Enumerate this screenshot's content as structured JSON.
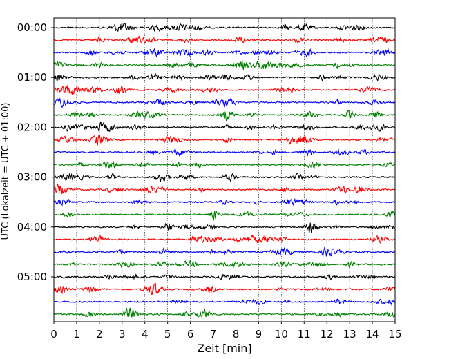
{
  "chart_data": {
    "type": "line",
    "subtype": "helicorder",
    "xlabel": "Zeit  [min]",
    "ylabel": "UTC (Lokalzeit = UTC + 01:00)",
    "xlim": [
      0,
      15
    ],
    "x_ticks": [
      "0",
      "1",
      "2",
      "3",
      "4",
      "5",
      "6",
      "7",
      "8",
      "9",
      "10",
      "11",
      "12",
      "13",
      "14",
      "15"
    ],
    "y_ticks": [
      "00:00",
      "01:00",
      "02:00",
      "03:00",
      "04:00",
      "05:00"
    ],
    "traces_per_hour": 4,
    "trace_count": 24,
    "trace_colors": [
      "#000000",
      "#ff0000",
      "#0000ff",
      "#008000"
    ],
    "grid": "vertical dotted lines at each minute",
    "signal": "continuous seismic noise with small bursts; amplitude roughly constant across all traces"
  }
}
